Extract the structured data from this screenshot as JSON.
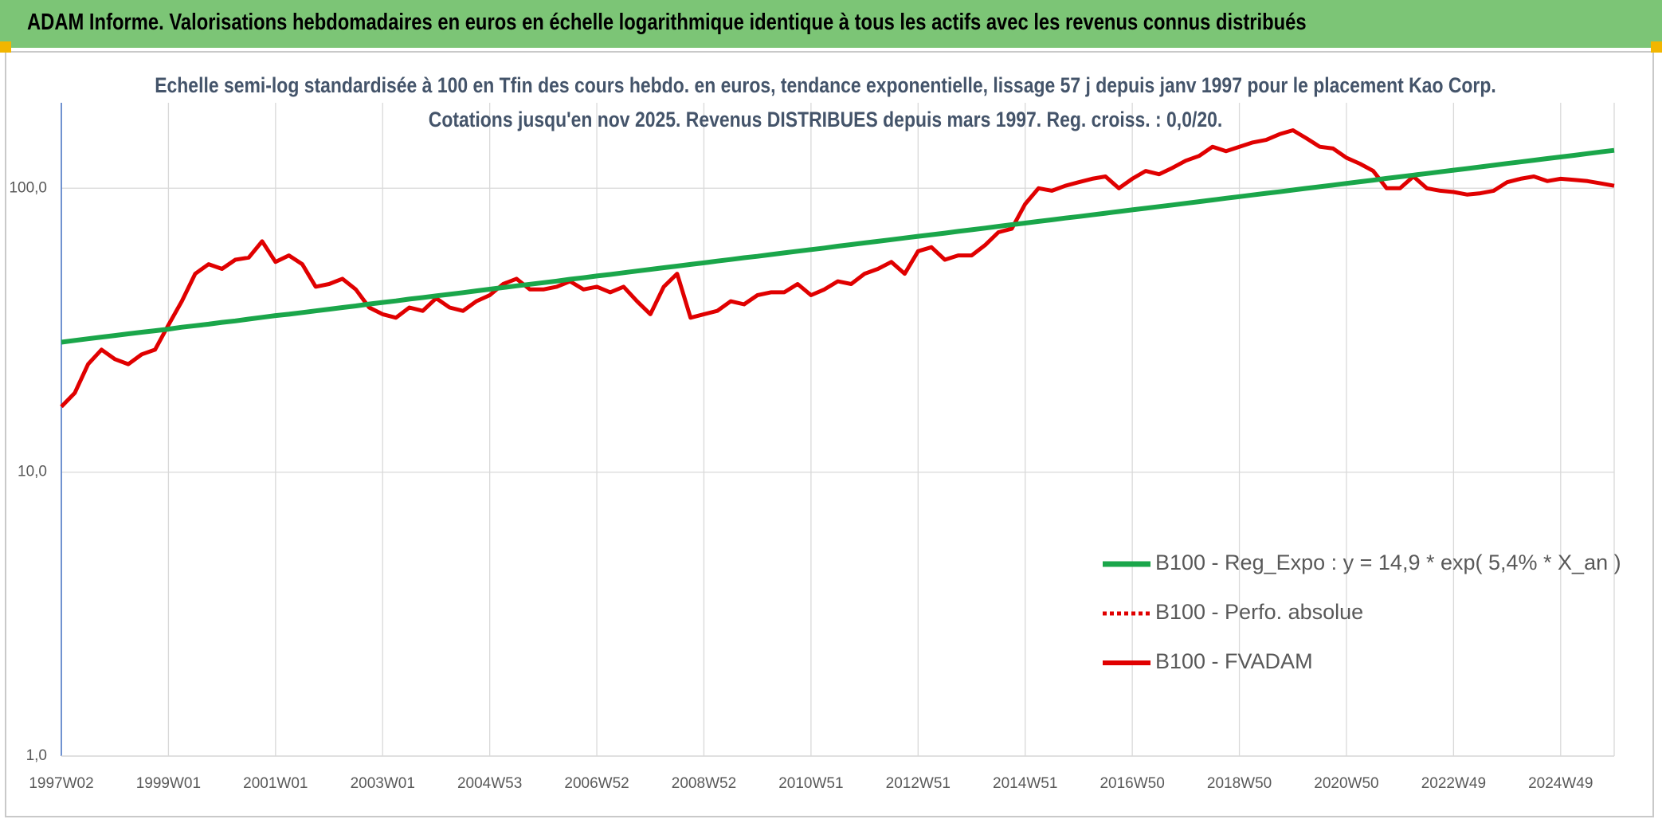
{
  "header": "ADAM Informe. Valorisations hebdomadaires en euros en échelle logarithmique identique à tous les actifs avec les revenus connus distribués",
  "chart_data": {
    "type": "line",
    "title": "Echelle semi-log standardisée à 100 en Tfin des cours hebdo. en euros, tendance exponentielle, lissage 57 j depuis janv 1997 pour le placement Kao Corp. Cotations jusqu'en nov 2025. Revenus DISTRIBUES depuis mars 1997. Reg. croiss. : 0,0/20.",
    "log_scale": true,
    "grid": true,
    "legend": "lower right",
    "ylim": [
      1,
      200
    ],
    "yticks": [
      {
        "value": 1,
        "label": "1,0"
      },
      {
        "value": 10,
        "label": "10,0"
      },
      {
        "value": 100,
        "label": "100,0"
      }
    ],
    "categories": [
      "1997W02",
      null,
      null,
      null,
      null,
      null,
      null,
      null,
      "1999W01",
      null,
      null,
      null,
      null,
      null,
      null,
      null,
      "2001W01",
      null,
      null,
      null,
      null,
      null,
      null,
      null,
      "2003W01",
      null,
      null,
      null,
      null,
      null,
      null,
      null,
      "2004W53",
      null,
      null,
      null,
      null,
      null,
      null,
      null,
      "2006W52",
      null,
      null,
      null,
      null,
      null,
      null,
      null,
      "2008W52",
      null,
      null,
      null,
      null,
      null,
      null,
      null,
      "2010W51",
      null,
      null,
      null,
      null,
      null,
      null,
      null,
      "2012W51",
      null,
      null,
      null,
      null,
      null,
      null,
      null,
      "2014W51",
      null,
      null,
      null,
      null,
      null,
      null,
      null,
      "2016W50",
      null,
      null,
      null,
      null,
      null,
      null,
      null,
      "2018W50",
      null,
      null,
      null,
      null,
      null,
      null,
      null,
      "2020W50",
      null,
      null,
      null,
      null,
      null,
      null,
      null,
      "2022W49",
      null,
      null,
      null,
      null,
      null,
      null,
      null,
      "2024W49",
      null,
      null,
      null,
      null
    ],
    "series": [
      {
        "name": "B100 - Reg_Expo : y = 14,9 * exp( 5,4% *  X_an )",
        "color": "#1aa64a",
        "width": 6,
        "values": [
          28.7,
          29.1,
          29.5,
          29.9,
          30.3,
          30.7,
          31.1,
          31.5,
          31.9,
          32.4,
          32.8,
          33.2,
          33.7,
          34.1,
          34.6,
          35.1,
          35.6,
          36.0,
          36.5,
          37.0,
          37.5,
          38.0,
          38.5,
          39.1,
          39.6,
          40.1,
          40.7,
          41.2,
          41.8,
          42.3,
          42.9,
          43.5,
          44.1,
          44.7,
          45.3,
          45.9,
          46.5,
          47.1,
          47.8,
          48.4,
          49.1,
          49.7,
          50.4,
          51.1,
          51.8,
          52.5,
          53.2,
          53.9,
          54.6,
          55.4,
          56.1,
          56.9,
          57.6,
          58.4,
          59.2,
          60.0,
          60.8,
          61.6,
          62.5,
          63.3,
          64.2,
          65.0,
          65.9,
          66.8,
          67.7,
          68.6,
          69.5,
          70.5,
          71.4,
          72.4,
          73.4,
          74.4,
          75.4,
          76.4,
          77.4,
          78.5,
          79.5,
          80.6,
          81.7,
          82.8,
          83.9,
          85.0,
          86.2,
          87.3,
          88.5,
          89.7,
          90.9,
          92.2,
          93.4,
          94.7,
          96.0,
          97.2,
          98.6,
          99.9,
          101.2,
          102.6,
          104.0,
          105.4,
          106.8,
          108.3,
          109.7,
          111.2,
          112.7,
          114.2,
          115.8,
          117.3,
          118.9,
          120.5,
          122.2,
          123.8,
          125.5,
          127.2,
          128.9,
          130.6,
          132.4,
          134.2,
          136.0
        ]
      },
      {
        "name": "B100 - Perfo. absolue",
        "color": "#e00000",
        "width": 4,
        "dash": true,
        "values": [
          null,
          null,
          null,
          null,
          null,
          null,
          null,
          null,
          null,
          null,
          null,
          null,
          null,
          null,
          null,
          null,
          null,
          null,
          null,
          null,
          null,
          null,
          null,
          null,
          null,
          null,
          null,
          null,
          null,
          null,
          null,
          null,
          null,
          null,
          null,
          null,
          null,
          null,
          null,
          null,
          null,
          null,
          null,
          null,
          null,
          null,
          null,
          null,
          null,
          null,
          null,
          null,
          null,
          null,
          null,
          null,
          null,
          null,
          null,
          null,
          null,
          null,
          null,
          null,
          null,
          null,
          null,
          null,
          null,
          null,
          null,
          null,
          null,
          null,
          null,
          null,
          null,
          null,
          null,
          null,
          null,
          null,
          null,
          null,
          null,
          null,
          null,
          null,
          null,
          null,
          null,
          null,
          null,
          null,
          null,
          null,
          null,
          null,
          null,
          null,
          null,
          null,
          null,
          null,
          null,
          null,
          null,
          null,
          null,
          null,
          null,
          null,
          null,
          null,
          null,
          null,
          null
        ]
      },
      {
        "name": "B100 - FVADAM",
        "color": "#e00000",
        "width": 5,
        "values": [
          17,
          19,
          24,
          27,
          25,
          24,
          26,
          27,
          33,
          40,
          50,
          54,
          52,
          56,
          57,
          65,
          55,
          58,
          54,
          45,
          46,
          48,
          44,
          38,
          36,
          35,
          38,
          37,
          41,
          38,
          37,
          40,
          42,
          46,
          48,
          44,
          44,
          45,
          47,
          44,
          45,
          43,
          45,
          40,
          36,
          45,
          50,
          35,
          36,
          37,
          40,
          39,
          42,
          43,
          43,
          46,
          42,
          44,
          47,
          46,
          50,
          52,
          55,
          50,
          60,
          62,
          56,
          58,
          58,
          63,
          70,
          72,
          88,
          100,
          98,
          102,
          105,
          108,
          110,
          100,
          108,
          115,
          112,
          118,
          125,
          130,
          140,
          135,
          140,
          145,
          148,
          155,
          160,
          150,
          140,
          138,
          128,
          122,
          115,
          100,
          100,
          110,
          100,
          98,
          97,
          95,
          96,
          98,
          105,
          108,
          110,
          106,
          108,
          107,
          106,
          104,
          102
        ]
      }
    ]
  }
}
